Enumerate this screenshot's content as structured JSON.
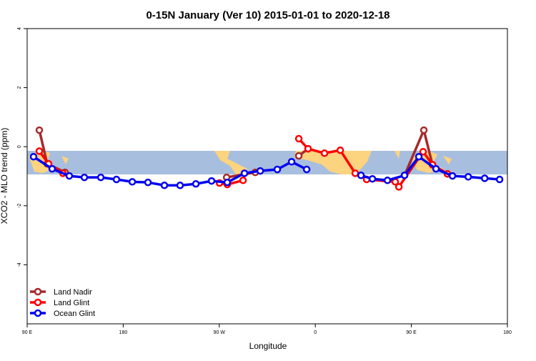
{
  "chart_data": {
    "type": "line",
    "title": "0-15N January (Ver 10)   2015-01-01 to 2020-12-18",
    "x_label": "Longitude",
    "y_label": "XCO2 - MLO trend (ppm)",
    "xlim": [
      90,
      540
    ],
    "ylim": [
      -6,
      4
    ],
    "xticks": [
      {
        "value": 90,
        "label": "90 E"
      },
      180,
      {
        "value": 270,
        "label": "90 W"
      },
      {
        "value": 360,
        "label": "0"
      },
      {
        "value": 450,
        "label": "90 E"
      },
      {
        "value": 540,
        "label": "180"
      }
    ],
    "yticks": [
      -4,
      -2,
      0,
      2,
      4
    ],
    "legend": "bottom-left",
    "series": [
      {
        "name": "Land Nadir",
        "color": "#a52a2a",
        "x": [
          101.4,
          108.8,
          125.5,
          null,
          276.9,
          303.7,
          null,
          344.5,
          353.2,
          null,
          443.6,
          461.7,
          469.8,
          483.8
        ],
        "values": [
          0.56,
          -0.58,
          -0.87,
          null,
          -1.04,
          -0.87,
          null,
          -0.31,
          -0.07,
          null,
          -0.97,
          0.56,
          -0.61,
          -0.92
        ]
      },
      {
        "name": "Land Glint",
        "color": "#ff0000",
        "x": [
          101.4,
          110.1,
          123.5,
          null,
          270.2,
          277.5,
          292.3,
          null,
          344.5,
          353.2,
          368.6,
          383.4,
          397.4,
          408.1,
          434.9,
          438.3,
          461.0,
          469.8,
          483.8
        ],
        "values": [
          -0.15,
          -0.58,
          -0.9,
          null,
          -1.23,
          -1.28,
          -1.14,
          null,
          0.27,
          -0.07,
          -0.22,
          -0.12,
          -0.9,
          -1.11,
          -1.19,
          -1.36,
          -0.17,
          -0.61,
          -0.92
        ]
      },
      {
        "name": "Ocean Glint",
        "color": "#0000ee",
        "x": [
          96.0,
          113.4,
          129.5,
          143.6,
          159.0,
          173.7,
          188.5,
          203.2,
          218.6,
          233.3,
          248.1,
          262.8,
          277.5,
          293.6,
          308.4,
          324.4,
          337.8,
          351.9,
          null,
          402.8,
          413.5,
          427.6,
          443.6,
          457.0,
          473.1,
          488.5,
          503.3,
          518.7,
          532.7
        ],
        "values": [
          -0.34,
          -0.75,
          -0.99,
          -1.04,
          -1.04,
          -1.11,
          -1.19,
          -1.21,
          -1.31,
          -1.31,
          -1.26,
          -1.16,
          -1.21,
          -0.9,
          -0.82,
          -0.77,
          -0.51,
          -0.77,
          null,
          -0.97,
          -1.09,
          -1.14,
          -0.97,
          -0.34,
          -0.75,
          -0.99,
          -1.02,
          -1.07,
          -1.11
        ]
      }
    ]
  }
}
